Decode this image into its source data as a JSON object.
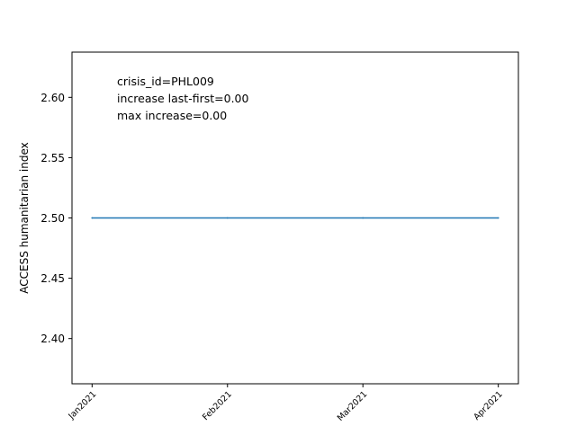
{
  "chart_data": {
    "type": "line",
    "title": "",
    "xlabel": "",
    "ylabel": "ACCESS humanitarian index",
    "x_ticks": [
      "Jan2021",
      "Feb2021",
      "Mar2021",
      "Apr2021"
    ],
    "y_ticks": [
      "2.40",
      "2.45",
      "2.50",
      "2.55",
      "2.60"
    ],
    "y_tick_values": [
      2.4,
      2.45,
      2.5,
      2.55,
      2.6
    ],
    "ylim": [
      2.3625,
      2.6375
    ],
    "x_range": [
      "Jan2021",
      "Apr2021"
    ],
    "grid": false,
    "series": [
      {
        "color": "#1f77b4",
        "x": [
          "Jan2021",
          "Feb2021",
          "Mar2021",
          "Apr2021"
        ],
        "values": [
          2.5,
          2.5,
          2.5,
          2.5
        ]
      }
    ],
    "annotations": [
      "crisis_id=PHL009",
      "increase last-first=0.00",
      "max increase=0.00"
    ]
  }
}
